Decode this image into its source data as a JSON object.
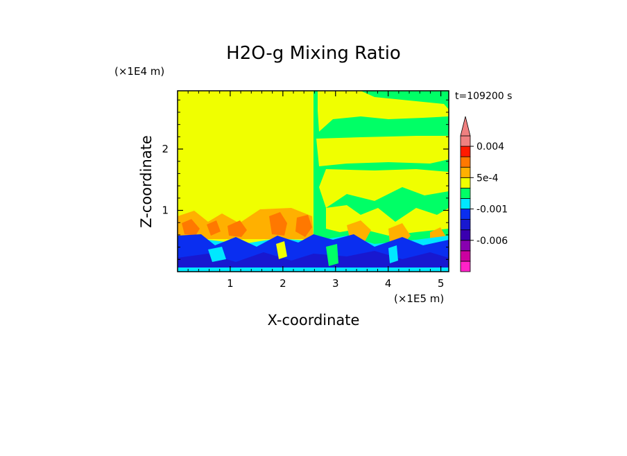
{
  "chart_data": {
    "type": "heatmap",
    "title": "H2O-g Mixing Ratio",
    "xlabel": "X-coordinate",
    "ylabel": "Z-coordinate",
    "x_unit": "(×1E5 m)",
    "y_unit": "(×1E4 m)",
    "time_label": "t=109200 s",
    "xlim": [
      0,
      5.15
    ],
    "ylim": [
      0,
      2.95
    ],
    "x_ticks": [
      1,
      2,
      3,
      4,
      5
    ],
    "y_ticks": [
      1,
      2
    ],
    "colorbar": {
      "levels": [
        {
          "label": "",
          "color": "#ff22c8"
        },
        {
          "label": "",
          "color": "#cc00a0"
        },
        {
          "label": "-0.006",
          "color": "#8800b0"
        },
        {
          "label": "",
          "color": "#3a00b0"
        },
        {
          "label": "",
          "color": "#1818d0"
        },
        {
          "label": "-0.001",
          "color": "#0a2ef0"
        },
        {
          "label": "",
          "color": "#00e8ff"
        },
        {
          "label": "",
          "color": "#00ff66"
        },
        {
          "label": "5e-4",
          "color": "#f0ff00"
        },
        {
          "label": "",
          "color": "#ffb000"
        },
        {
          "label": "",
          "color": "#ff7800"
        },
        {
          "label": "0.004",
          "color": "#ff1a00"
        },
        {
          "label": "",
          "color": "#f08080"
        }
      ],
      "extend": "max"
    }
  }
}
